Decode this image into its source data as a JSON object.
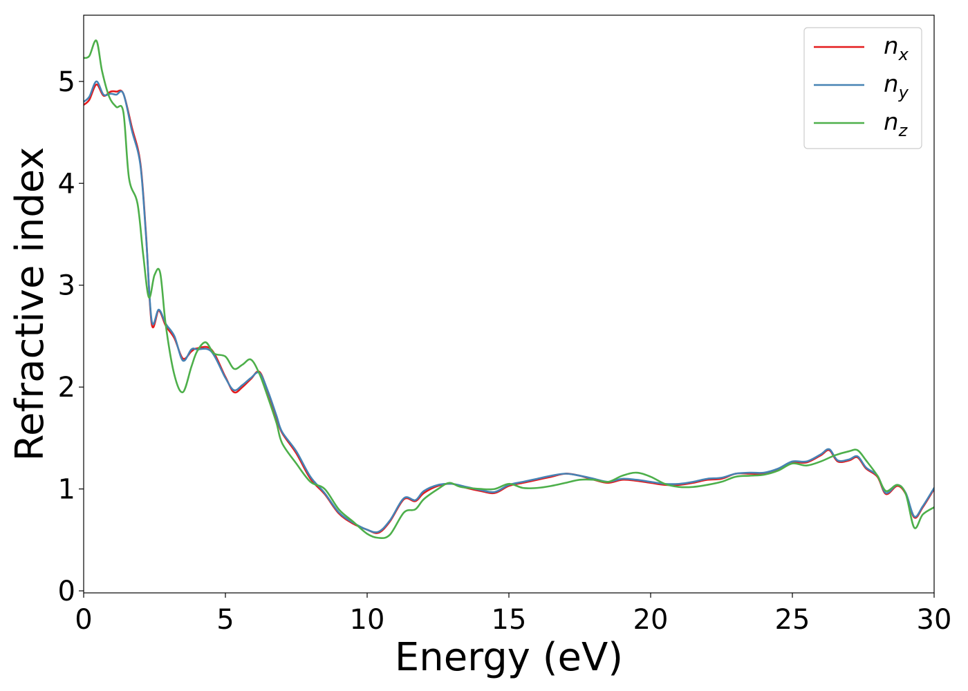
{
  "chart_data": {
    "type": "line",
    "xlabel": "Energy (eV)",
    "ylabel": "Refractive index",
    "xlim": [
      0,
      30
    ],
    "ylim": [
      -0.02,
      5.65
    ],
    "xticks": [
      0,
      5,
      10,
      15,
      20,
      25,
      30
    ],
    "xtick_labels": [
      "0",
      "5",
      "10",
      "15",
      "20",
      "25",
      "30"
    ],
    "yticks": [
      0,
      1,
      2,
      3,
      4,
      5
    ],
    "ytick_labels": [
      "0",
      "1",
      "2",
      "3",
      "4",
      "5"
    ],
    "grid": false,
    "legend_position": "top-right",
    "series": [
      {
        "name": "n_x",
        "legend_base": "n",
        "legend_sub": "x",
        "color": "#e41a1c",
        "x": [
          0,
          0.2,
          0.45,
          0.7,
          0.95,
          1.15,
          1.4,
          1.7,
          2.0,
          2.2,
          2.4,
          2.65,
          2.9,
          3.2,
          3.5,
          3.8,
          4.0,
          4.5,
          5.0,
          5.3,
          5.6,
          5.9,
          6.2,
          6.5,
          6.8,
          7.0,
          7.5,
          8.0,
          8.5,
          9.0,
          9.5,
          10.0,
          10.4,
          10.8,
          11.3,
          11.7,
          12.0,
          12.5,
          13.0,
          13.5,
          14.0,
          14.5,
          15.0,
          15.5,
          16.0,
          16.5,
          17.0,
          17.5,
          18.0,
          18.5,
          19.0,
          19.5,
          20.0,
          20.5,
          21.0,
          21.5,
          22.0,
          22.5,
          23.0,
          23.5,
          24.0,
          24.5,
          25.0,
          25.5,
          26.0,
          26.3,
          26.6,
          27.0,
          27.3,
          27.6,
          28.0,
          28.3,
          28.7,
          29.0,
          29.3,
          29.6,
          30.0
        ],
        "values": [
          4.77,
          4.82,
          4.97,
          4.86,
          4.9,
          4.9,
          4.88,
          4.55,
          4.2,
          3.5,
          2.62,
          2.75,
          2.6,
          2.48,
          2.28,
          2.35,
          2.38,
          2.37,
          2.1,
          1.95,
          2.0,
          2.08,
          2.15,
          1.95,
          1.7,
          1.55,
          1.35,
          1.1,
          0.95,
          0.76,
          0.66,
          0.6,
          0.57,
          0.68,
          0.9,
          0.88,
          0.96,
          1.03,
          1.05,
          1.01,
          0.98,
          0.96,
          1.03,
          1.06,
          1.09,
          1.12,
          1.15,
          1.13,
          1.09,
          1.06,
          1.09,
          1.08,
          1.06,
          1.04,
          1.04,
          1.06,
          1.09,
          1.1,
          1.15,
          1.15,
          1.15,
          1.19,
          1.26,
          1.26,
          1.33,
          1.38,
          1.27,
          1.28,
          1.31,
          1.2,
          1.12,
          0.95,
          1.03,
          0.95,
          0.72,
          0.82,
          1.0
        ]
      },
      {
        "name": "n_y",
        "legend_base": "n",
        "legend_sub": "y",
        "color": "#4682b4",
        "x": [
          0,
          0.2,
          0.45,
          0.7,
          0.95,
          1.15,
          1.4,
          1.7,
          2.0,
          2.2,
          2.4,
          2.65,
          2.9,
          3.2,
          3.5,
          3.8,
          4.0,
          4.5,
          5.0,
          5.3,
          5.6,
          5.9,
          6.2,
          6.5,
          6.8,
          7.0,
          7.5,
          8.0,
          8.5,
          9.0,
          9.5,
          10.0,
          10.4,
          10.8,
          11.3,
          11.7,
          12.0,
          12.5,
          13.0,
          13.5,
          14.0,
          14.5,
          15.0,
          15.5,
          16.0,
          16.5,
          17.0,
          17.5,
          18.0,
          18.5,
          19.0,
          19.5,
          20.0,
          20.5,
          21.0,
          21.5,
          22.0,
          22.5,
          23.0,
          23.5,
          24.0,
          24.5,
          25.0,
          25.5,
          26.0,
          26.3,
          26.6,
          27.0,
          27.3,
          27.6,
          28.0,
          28.3,
          28.7,
          29.0,
          29.3,
          29.6,
          30.0
        ],
        "values": [
          4.8,
          4.85,
          5.0,
          4.87,
          4.88,
          4.87,
          4.88,
          4.52,
          4.18,
          3.48,
          2.65,
          2.76,
          2.62,
          2.5,
          2.26,
          2.37,
          2.37,
          2.35,
          2.09,
          1.97,
          2.02,
          2.09,
          2.14,
          1.96,
          1.72,
          1.56,
          1.37,
          1.12,
          0.96,
          0.77,
          0.67,
          0.6,
          0.58,
          0.69,
          0.91,
          0.89,
          0.98,
          1.04,
          1.05,
          1.02,
          0.99,
          0.97,
          1.04,
          1.07,
          1.1,
          1.13,
          1.15,
          1.13,
          1.1,
          1.07,
          1.1,
          1.09,
          1.07,
          1.05,
          1.05,
          1.07,
          1.1,
          1.11,
          1.15,
          1.16,
          1.16,
          1.2,
          1.27,
          1.27,
          1.34,
          1.39,
          1.28,
          1.29,
          1.32,
          1.21,
          1.13,
          0.96,
          1.04,
          0.96,
          0.73,
          0.83,
          1.01
        ]
      },
      {
        "name": "n_z",
        "legend_base": "n",
        "legend_sub": "z",
        "color": "#4daf4a",
        "x": [
          0,
          0.2,
          0.45,
          0.65,
          0.9,
          1.15,
          1.4,
          1.6,
          1.9,
          2.1,
          2.3,
          2.5,
          2.7,
          2.9,
          3.2,
          3.5,
          3.8,
          4.0,
          4.3,
          4.6,
          5.0,
          5.3,
          5.6,
          5.9,
          6.2,
          6.5,
          6.8,
          7.0,
          7.5,
          8.0,
          8.5,
          9.0,
          9.5,
          10.0,
          10.4,
          10.8,
          11.3,
          11.7,
          12.0,
          12.5,
          12.9,
          13.3,
          14.0,
          14.5,
          15.0,
          15.5,
          16.0,
          16.5,
          17.0,
          17.5,
          18.0,
          18.5,
          19.0,
          19.5,
          20.0,
          20.5,
          21.0,
          21.5,
          22.0,
          22.5,
          23.0,
          23.5,
          24.0,
          24.5,
          25.0,
          25.5,
          26.0,
          26.5,
          27.0,
          27.3,
          27.6,
          28.0,
          28.3,
          28.7,
          29.0,
          29.3,
          29.6,
          30.0
        ],
        "values": [
          5.23,
          5.25,
          5.4,
          5.1,
          4.85,
          4.75,
          4.7,
          4.05,
          3.8,
          3.3,
          2.88,
          3.1,
          3.12,
          2.6,
          2.12,
          1.95,
          2.2,
          2.35,
          2.44,
          2.33,
          2.3,
          2.18,
          2.22,
          2.27,
          2.13,
          1.9,
          1.65,
          1.45,
          1.25,
          1.07,
          1.0,
          0.8,
          0.68,
          0.56,
          0.52,
          0.55,
          0.77,
          0.8,
          0.9,
          1.0,
          1.06,
          1.02,
          1.0,
          1.0,
          1.05,
          1.01,
          1.01,
          1.03,
          1.06,
          1.09,
          1.09,
          1.07,
          1.13,
          1.16,
          1.12,
          1.05,
          1.02,
          1.02,
          1.04,
          1.07,
          1.12,
          1.13,
          1.14,
          1.18,
          1.25,
          1.23,
          1.27,
          1.33,
          1.37,
          1.38,
          1.28,
          1.13,
          0.98,
          1.04,
          0.95,
          0.62,
          0.75,
          0.82
        ]
      }
    ]
  }
}
